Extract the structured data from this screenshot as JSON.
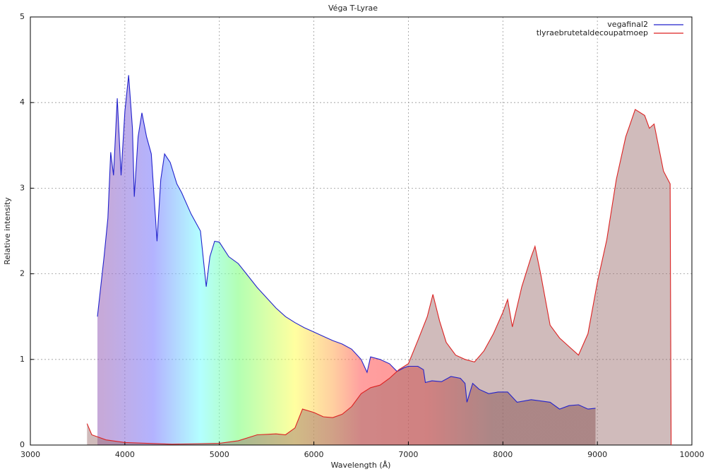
{
  "chart_data": {
    "type": "line",
    "title": "Véga T-Lyrae",
    "x_label": "Wavelength (Å)",
    "y_label": "Relative intensity",
    "xlim": [
      3000,
      10000
    ],
    "xticks": [
      3000,
      4000,
      5000,
      6000,
      7000,
      8000,
      9000,
      10000
    ],
    "ylim": [
      0,
      5
    ],
    "yticks": [
      0,
      1,
      2,
      3,
      4,
      5
    ],
    "grid": true,
    "legend": "top-right",
    "series": [
      {
        "name": "vegafinal2",
        "color": "#2222cc",
        "x": [
          3710,
          3780,
          3820,
          3850,
          3880,
          3920,
          3960,
          4000,
          4040,
          4080,
          4100,
          4140,
          4180,
          4230,
          4280,
          4340,
          4380,
          4420,
          4480,
          4550,
          4600,
          4700,
          4800,
          4861,
          4900,
          4950,
          5000,
          5100,
          5200,
          5300,
          5400,
          5500,
          5600,
          5700,
          5800,
          5900,
          6000,
          6100,
          6200,
          6300,
          6400,
          6500,
          6563,
          6600,
          6700,
          6800,
          6880,
          6950,
          7000,
          7100,
          7160,
          7180,
          7250,
          7350,
          7450,
          7550,
          7600,
          7620,
          7680,
          7750,
          7850,
          7950,
          8050,
          8150,
          8300,
          8500,
          8600,
          8700,
          8800,
          8900,
          8980
        ],
        "values": [
          1.5,
          2.2,
          2.65,
          3.42,
          3.15,
          4.05,
          3.15,
          3.9,
          4.32,
          3.7,
          2.9,
          3.6,
          3.88,
          3.6,
          3.4,
          2.38,
          3.1,
          3.4,
          3.3,
          3.05,
          2.95,
          2.7,
          2.5,
          1.85,
          2.2,
          2.38,
          2.37,
          2.2,
          2.12,
          1.98,
          1.84,
          1.72,
          1.6,
          1.5,
          1.43,
          1.37,
          1.32,
          1.27,
          1.22,
          1.18,
          1.12,
          1.0,
          0.85,
          1.03,
          1.0,
          0.95,
          0.86,
          0.9,
          0.92,
          0.92,
          0.88,
          0.73,
          0.75,
          0.74,
          0.8,
          0.78,
          0.72,
          0.5,
          0.72,
          0.65,
          0.6,
          0.62,
          0.62,
          0.5,
          0.53,
          0.5,
          0.42,
          0.46,
          0.47,
          0.42,
          0.43
        ]
      },
      {
        "name": "tlyraebrutetaldecoupatmoep",
        "color": "#dd2222",
        "x": [
          3600,
          3650,
          3800,
          4000,
          4500,
          5000,
          5200,
          5400,
          5600,
          5700,
          5800,
          5880,
          6000,
          6100,
          6200,
          6300,
          6400,
          6500,
          6600,
          6700,
          6800,
          6900,
          7000,
          7100,
          7200,
          7260,
          7330,
          7400,
          7500,
          7600,
          7700,
          7800,
          7900,
          8000,
          8050,
          8100,
          8200,
          8300,
          8340,
          8400,
          8500,
          8600,
          8700,
          8800,
          8900,
          9000,
          9100,
          9200,
          9300,
          9400,
          9500,
          9550,
          9600,
          9700,
          9770,
          9780
        ],
        "values": [
          0.25,
          0.12,
          0.06,
          0.03,
          0.01,
          0.02,
          0.05,
          0.12,
          0.13,
          0.12,
          0.2,
          0.42,
          0.38,
          0.33,
          0.32,
          0.36,
          0.45,
          0.6,
          0.67,
          0.7,
          0.78,
          0.88,
          0.95,
          1.22,
          1.5,
          1.76,
          1.45,
          1.2,
          1.05,
          1.0,
          0.97,
          1.1,
          1.3,
          1.55,
          1.7,
          1.38,
          1.85,
          2.2,
          2.32,
          2.0,
          1.4,
          1.25,
          1.15,
          1.05,
          1.3,
          1.9,
          2.4,
          3.1,
          3.6,
          3.92,
          3.85,
          3.7,
          3.75,
          3.2,
          3.05,
          0
        ]
      }
    ]
  }
}
